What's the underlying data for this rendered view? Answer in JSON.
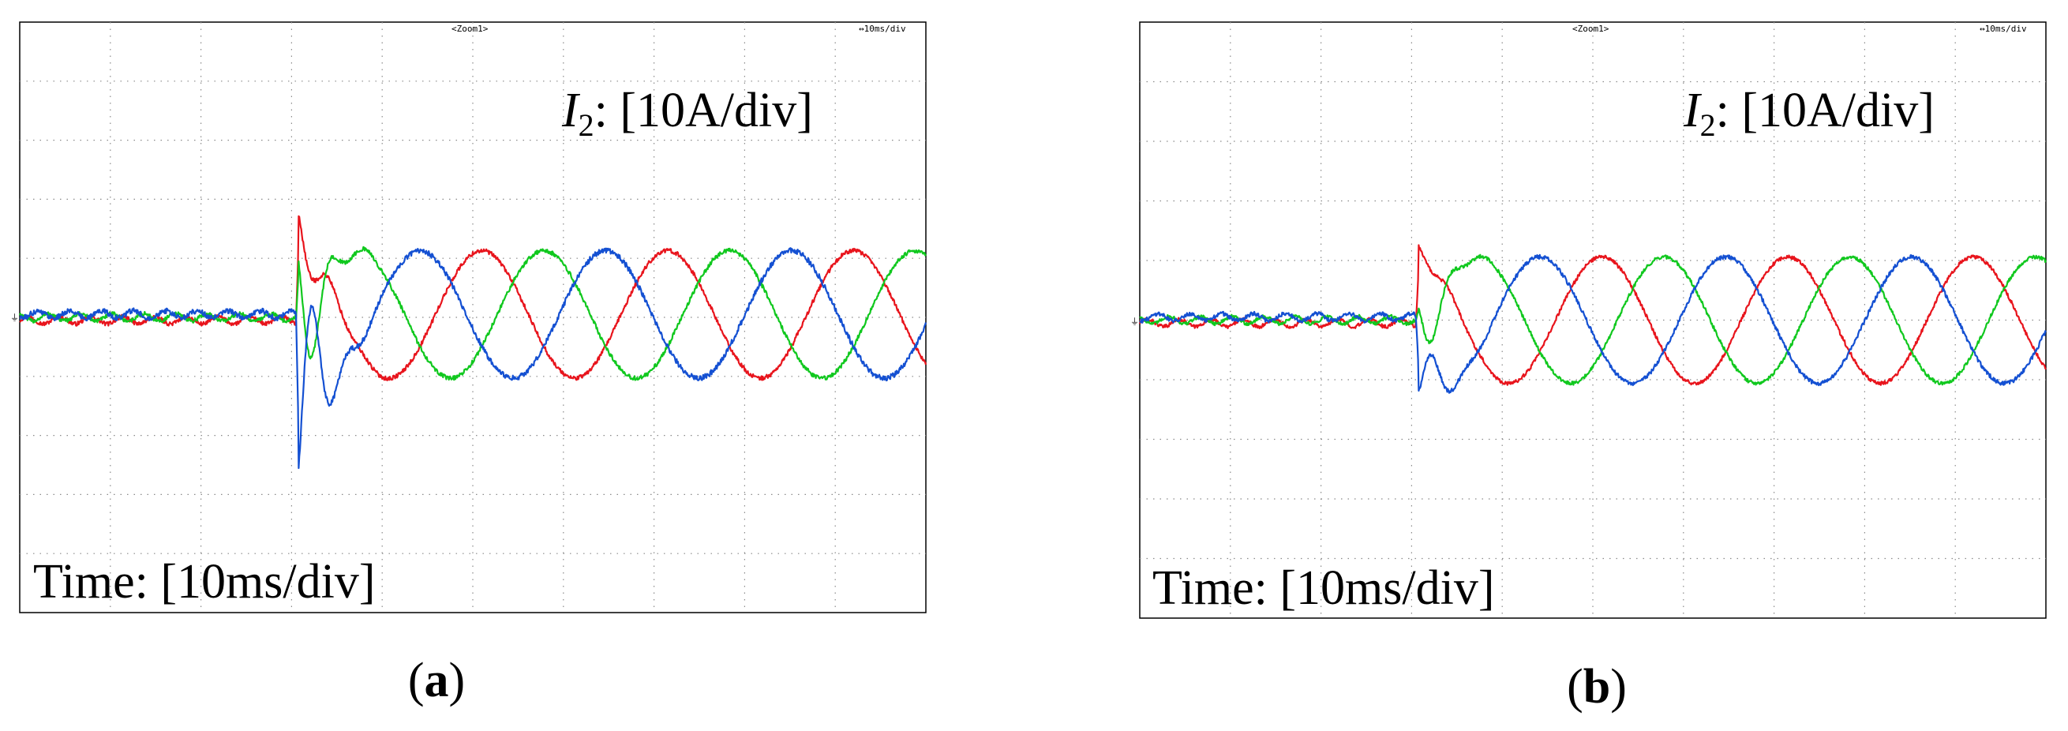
{
  "chart_data": [
    {
      "panel": "a",
      "type": "line",
      "zoom_label": "<Zoom1>",
      "timebase_label": "↔10ms/div",
      "current_label": {
        "italic": "I",
        "sub": "2",
        "rest": ": [10A/div]"
      },
      "time_label": "Time: [10ms/div]",
      "caption": {
        "open": "(",
        "letter": "a",
        "close": ")"
      },
      "grid": {
        "xdivs": 10,
        "ydivs": 10,
        "style": "dotted"
      },
      "xlim": [
        0,
        100
      ],
      "ylim": [
        -50,
        50
      ],
      "x_unit": "ms",
      "y_unit": "A",
      "transient_at_ms": 30.5,
      "pre_fault": {
        "amplitude_a": 0.6,
        "period_ms": 3.5,
        "offset_a": 0
      },
      "series": [
        {
          "color": "#e8141c",
          "post_amplitude_a": 10.8,
          "post_period_ms": 20.5,
          "phase_deg": 90,
          "offset_a": 0.5,
          "peak_start_a": 19,
          "noise_a": 0.35
        },
        {
          "color": "#10c81e",
          "post_amplitude_a": 10.8,
          "post_period_ms": 20.5,
          "phase_deg": -30,
          "offset_a": 0.5,
          "peak_start_a": 12,
          "noise_a": 0.35
        },
        {
          "color": "#1450d2",
          "post_amplitude_a": 10.8,
          "post_period_ms": 20.5,
          "phase_deg": 210,
          "offset_a": 0.5,
          "peak_start_a": -30,
          "noise_a": 0.45
        }
      ]
    },
    {
      "panel": "b",
      "type": "line",
      "zoom_label": "<Zoom1>",
      "timebase_label": "↔10ms/div",
      "current_label": {
        "italic": "I",
        "sub": "2",
        "rest": ": [10A/div]"
      },
      "time_label": "Time: [10ms/div]",
      "caption": {
        "open": "(",
        "letter": "b",
        "close": ")"
      },
      "grid": {
        "xdivs": 10,
        "ydivs": 10,
        "style": "dotted"
      },
      "xlim": [
        0,
        100
      ],
      "ylim": [
        -50,
        50
      ],
      "x_unit": "ms",
      "y_unit": "A",
      "transient_at_ms": 30.5,
      "pre_fault": {
        "amplitude_a": 0.6,
        "period_ms": 3.5,
        "offset_a": 0
      },
      "series": [
        {
          "color": "#e8141c",
          "post_amplitude_a": 10.6,
          "post_period_ms": 20.5,
          "phase_deg": 90,
          "offset_a": 0,
          "peak_start_a": 13,
          "noise_a": 0.3
        },
        {
          "color": "#10c81e",
          "post_amplitude_a": 10.6,
          "post_period_ms": 20.5,
          "phase_deg": -30,
          "offset_a": 0,
          "peak_start_a": 3,
          "noise_a": 0.3
        },
        {
          "color": "#1450d2",
          "post_amplitude_a": 10.6,
          "post_period_ms": 20.5,
          "phase_deg": 210,
          "offset_a": 0,
          "peak_start_a": -13,
          "noise_a": 0.35
        }
      ]
    }
  ]
}
